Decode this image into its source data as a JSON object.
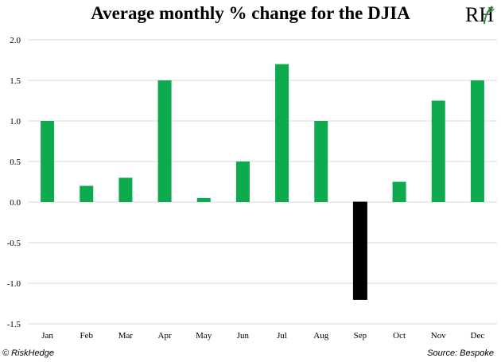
{
  "title": "Average monthly % change for the DJIA",
  "logo_text": "RH",
  "footer": {
    "copyright": "© RiskHedge",
    "source": "Source: Bespoke"
  },
  "colors": {
    "positive": "#0daa4e",
    "negative": "#000000",
    "grid": "#d9d9d9",
    "logo_green": "#2e8b3e"
  },
  "chart_data": {
    "type": "bar",
    "title": "Average monthly % change for the DJIA",
    "xlabel": "",
    "ylabel": "",
    "categories": [
      "Jan",
      "Feb",
      "Mar",
      "Apr",
      "May",
      "Jun",
      "Jul",
      "Aug",
      "Sep",
      "Oct",
      "Nov",
      "Dec"
    ],
    "values": [
      1.0,
      0.2,
      0.3,
      1.5,
      0.05,
      0.5,
      1.7,
      1.0,
      -1.2,
      0.25,
      1.25,
      1.5
    ],
    "ylim": [
      -1.5,
      2.0
    ],
    "yticks": [
      "2.0",
      "1.5",
      "1.0",
      "0.5",
      "0.0",
      "-0.5",
      "-1.0",
      "-1.5"
    ],
    "ytick_values": [
      2.0,
      1.5,
      1.0,
      0.5,
      0.0,
      -0.5,
      -1.0,
      -1.5
    ],
    "grid": true,
    "legend": "none"
  }
}
